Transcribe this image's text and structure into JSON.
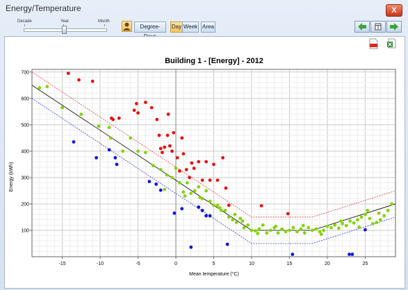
{
  "window": {
    "title": "Energy/Temperature",
    "close_label": "X"
  },
  "toolbar": {
    "slider_labels": [
      "Decade",
      "Year",
      "Month"
    ],
    "slider_value": "Year",
    "degree_days_label": "Degree-Days",
    "day_label": "Day",
    "week_label": "Week",
    "area_label": "Area",
    "active_period": "Day"
  },
  "icons": {
    "user": "person-icon",
    "prev": "arrow-left-icon",
    "calendar": "calendar-icon",
    "next": "arrow-right-icon",
    "pdf": "pdf-export-icon",
    "excel": "excel-export-icon",
    "close": "close-icon"
  },
  "colors": {
    "accent": "#f6c55b",
    "frame": "#dde6f1"
  },
  "chart_data": {
    "type": "scatter",
    "title": "Building 1 - [Energy] - 2012",
    "xlabel": "Mean temperature (°C)",
    "ylabel": "Energy (kWh)",
    "xlim": [
      -19,
      29
    ],
    "ylim": [
      0,
      710
    ],
    "x_ticks": [
      -15,
      -10,
      -5,
      0,
      5,
      10,
      15,
      20,
      25
    ],
    "y_ticks": [
      100,
      200,
      300,
      400,
      500,
      600,
      700
    ],
    "grid": true,
    "model_line": {
      "x": [
        -19,
        10,
        18,
        29
      ],
      "y": [
        650,
        100,
        100,
        200
      ],
      "color": "#000000"
    },
    "upper_line": {
      "x": [
        -19,
        10,
        18,
        29
      ],
      "y": [
        700,
        150,
        150,
        250
      ],
      "color": "#e23a3a"
    },
    "lower_line": {
      "x": [
        -19,
        10,
        18,
        29
      ],
      "y": [
        600,
        50,
        50,
        150
      ],
      "color": "#2a3adc"
    },
    "series": [
      {
        "color": "#e81010",
        "points": [
          [
            -14.2,
            695
          ],
          [
            -12.8,
            670
          ],
          [
            -11,
            665
          ],
          [
            -8.5,
            525
          ],
          [
            -8.3,
            520
          ],
          [
            -7.5,
            525
          ],
          [
            -5.5,
            555
          ],
          [
            -5.2,
            580
          ],
          [
            -5,
            545
          ],
          [
            -4,
            585
          ],
          [
            -3.2,
            565
          ],
          [
            -2.5,
            520
          ],
          [
            -2.2,
            460
          ],
          [
            -2,
            410
          ],
          [
            -1.8,
            395
          ],
          [
            -1.5,
            415
          ],
          [
            -1.1,
            460
          ],
          [
            -1,
            540
          ],
          [
            -0.8,
            420
          ],
          [
            -0.5,
            400
          ],
          [
            -0.3,
            470
          ],
          [
            0.2,
            375
          ],
          [
            0.5,
            325
          ],
          [
            0.8,
            450
          ],
          [
            1,
            390
          ],
          [
            1.4,
            330
          ],
          [
            1.8,
            300
          ],
          [
            2.1,
            355
          ],
          [
            2.4,
            335
          ],
          [
            3,
            360
          ],
          [
            3.5,
            290
          ],
          [
            4,
            360
          ],
          [
            4.5,
            290
          ],
          [
            5,
            350
          ],
          [
            5.5,
            290
          ],
          [
            6.2,
            375
          ],
          [
            6.6,
            260
          ],
          [
            7,
            195
          ],
          [
            11.3,
            193
          ],
          [
            14.8,
            163
          ]
        ]
      },
      {
        "color": "#1010e0",
        "points": [
          [
            -13.5,
            435
          ],
          [
            -10.5,
            375
          ],
          [
            -8.8,
            405
          ],
          [
            -8,
            375
          ],
          [
            -7.8,
            350
          ],
          [
            -3.5,
            285
          ],
          [
            -2.6,
            275
          ],
          [
            -2,
            252
          ],
          [
            -0.2,
            165
          ],
          [
            0.8,
            182
          ],
          [
            2,
            36
          ],
          [
            3,
            188
          ],
          [
            3.5,
            175
          ],
          [
            4,
            155
          ],
          [
            4.5,
            155
          ],
          [
            6.8,
            47
          ],
          [
            15.4,
            9
          ],
          [
            22.9,
            9
          ],
          [
            23.3,
            9
          ],
          [
            25,
            102
          ]
        ]
      },
      {
        "color": "#84d40a",
        "points": [
          [
            -18,
            640
          ],
          [
            -17,
            645
          ],
          [
            -15,
            565
          ],
          [
            -12.5,
            540
          ],
          [
            -10.2,
            495
          ],
          [
            -8.8,
            490
          ],
          [
            -8.6,
            450
          ],
          [
            -7,
            400
          ],
          [
            -6,
            450
          ],
          [
            -5,
            400
          ],
          [
            -4,
            395
          ],
          [
            -3,
            345
          ],
          [
            -2,
            330
          ],
          [
            -1.2,
            310
          ],
          [
            -0.5,
            300
          ],
          [
            0,
            335
          ],
          [
            0.5,
            280
          ],
          [
            1,
            245
          ],
          [
            1.5,
            280
          ],
          [
            2,
            240
          ],
          [
            2.5,
            250
          ],
          [
            3,
            265
          ],
          [
            3.5,
            220
          ],
          [
            4,
            250
          ],
          [
            4.5,
            210
          ],
          [
            5,
            195
          ],
          [
            5.5,
            195
          ],
          [
            6,
            175
          ],
          [
            6.5,
            175
          ],
          [
            7,
            150
          ],
          [
            7.5,
            140
          ],
          [
            8,
            130
          ],
          [
            8.5,
            145
          ],
          [
            9,
            110
          ],
          [
            9.5,
            120
          ],
          [
            10,
            100
          ],
          [
            10.5,
            98
          ],
          [
            11,
            105
          ],
          [
            11.5,
            120
          ],
          [
            12,
            90
          ],
          [
            12.5,
            100
          ],
          [
            13,
            110
          ],
          [
            13.5,
            90
          ],
          [
            14,
            105
          ],
          [
            14.5,
            95
          ],
          [
            15,
            100
          ],
          [
            15.5,
            110
          ],
          [
            16,
            95
          ],
          [
            16.5,
            105
          ],
          [
            17,
            90
          ],
          [
            17.5,
            110
          ],
          [
            18,
            100
          ],
          [
            18.5,
            105
          ],
          [
            19,
            95
          ],
          [
            19.5,
            100
          ],
          [
            20,
            115
          ],
          [
            20.5,
            110
          ],
          [
            21,
            120
          ],
          [
            21.5,
            108
          ],
          [
            22,
            125
          ],
          [
            22.5,
            118
          ],
          [
            23,
            135
          ],
          [
            23.5,
            128
          ],
          [
            24,
            140
          ],
          [
            24.5,
            150
          ],
          [
            25,
            160
          ],
          [
            25.3,
            175
          ],
          [
            25.6,
            145
          ],
          [
            26,
            125
          ],
          [
            26.5,
            130
          ],
          [
            27,
            140
          ],
          [
            27.5,
            155
          ],
          [
            28,
            175
          ],
          [
            28.5,
            200
          ],
          [
            10.8,
            88
          ],
          [
            13.2,
            115
          ],
          [
            16.8,
            118
          ],
          [
            19.2,
            85
          ],
          [
            21.8,
            135
          ],
          [
            24.2,
            112
          ],
          [
            26.8,
            165
          ],
          [
            -1.5,
            255
          ],
          [
            1.2,
            230
          ],
          [
            3.2,
            225
          ],
          [
            5.8,
            185
          ],
          [
            7.8,
            160
          ],
          [
            8.8,
            135
          ]
        ]
      }
    ]
  }
}
